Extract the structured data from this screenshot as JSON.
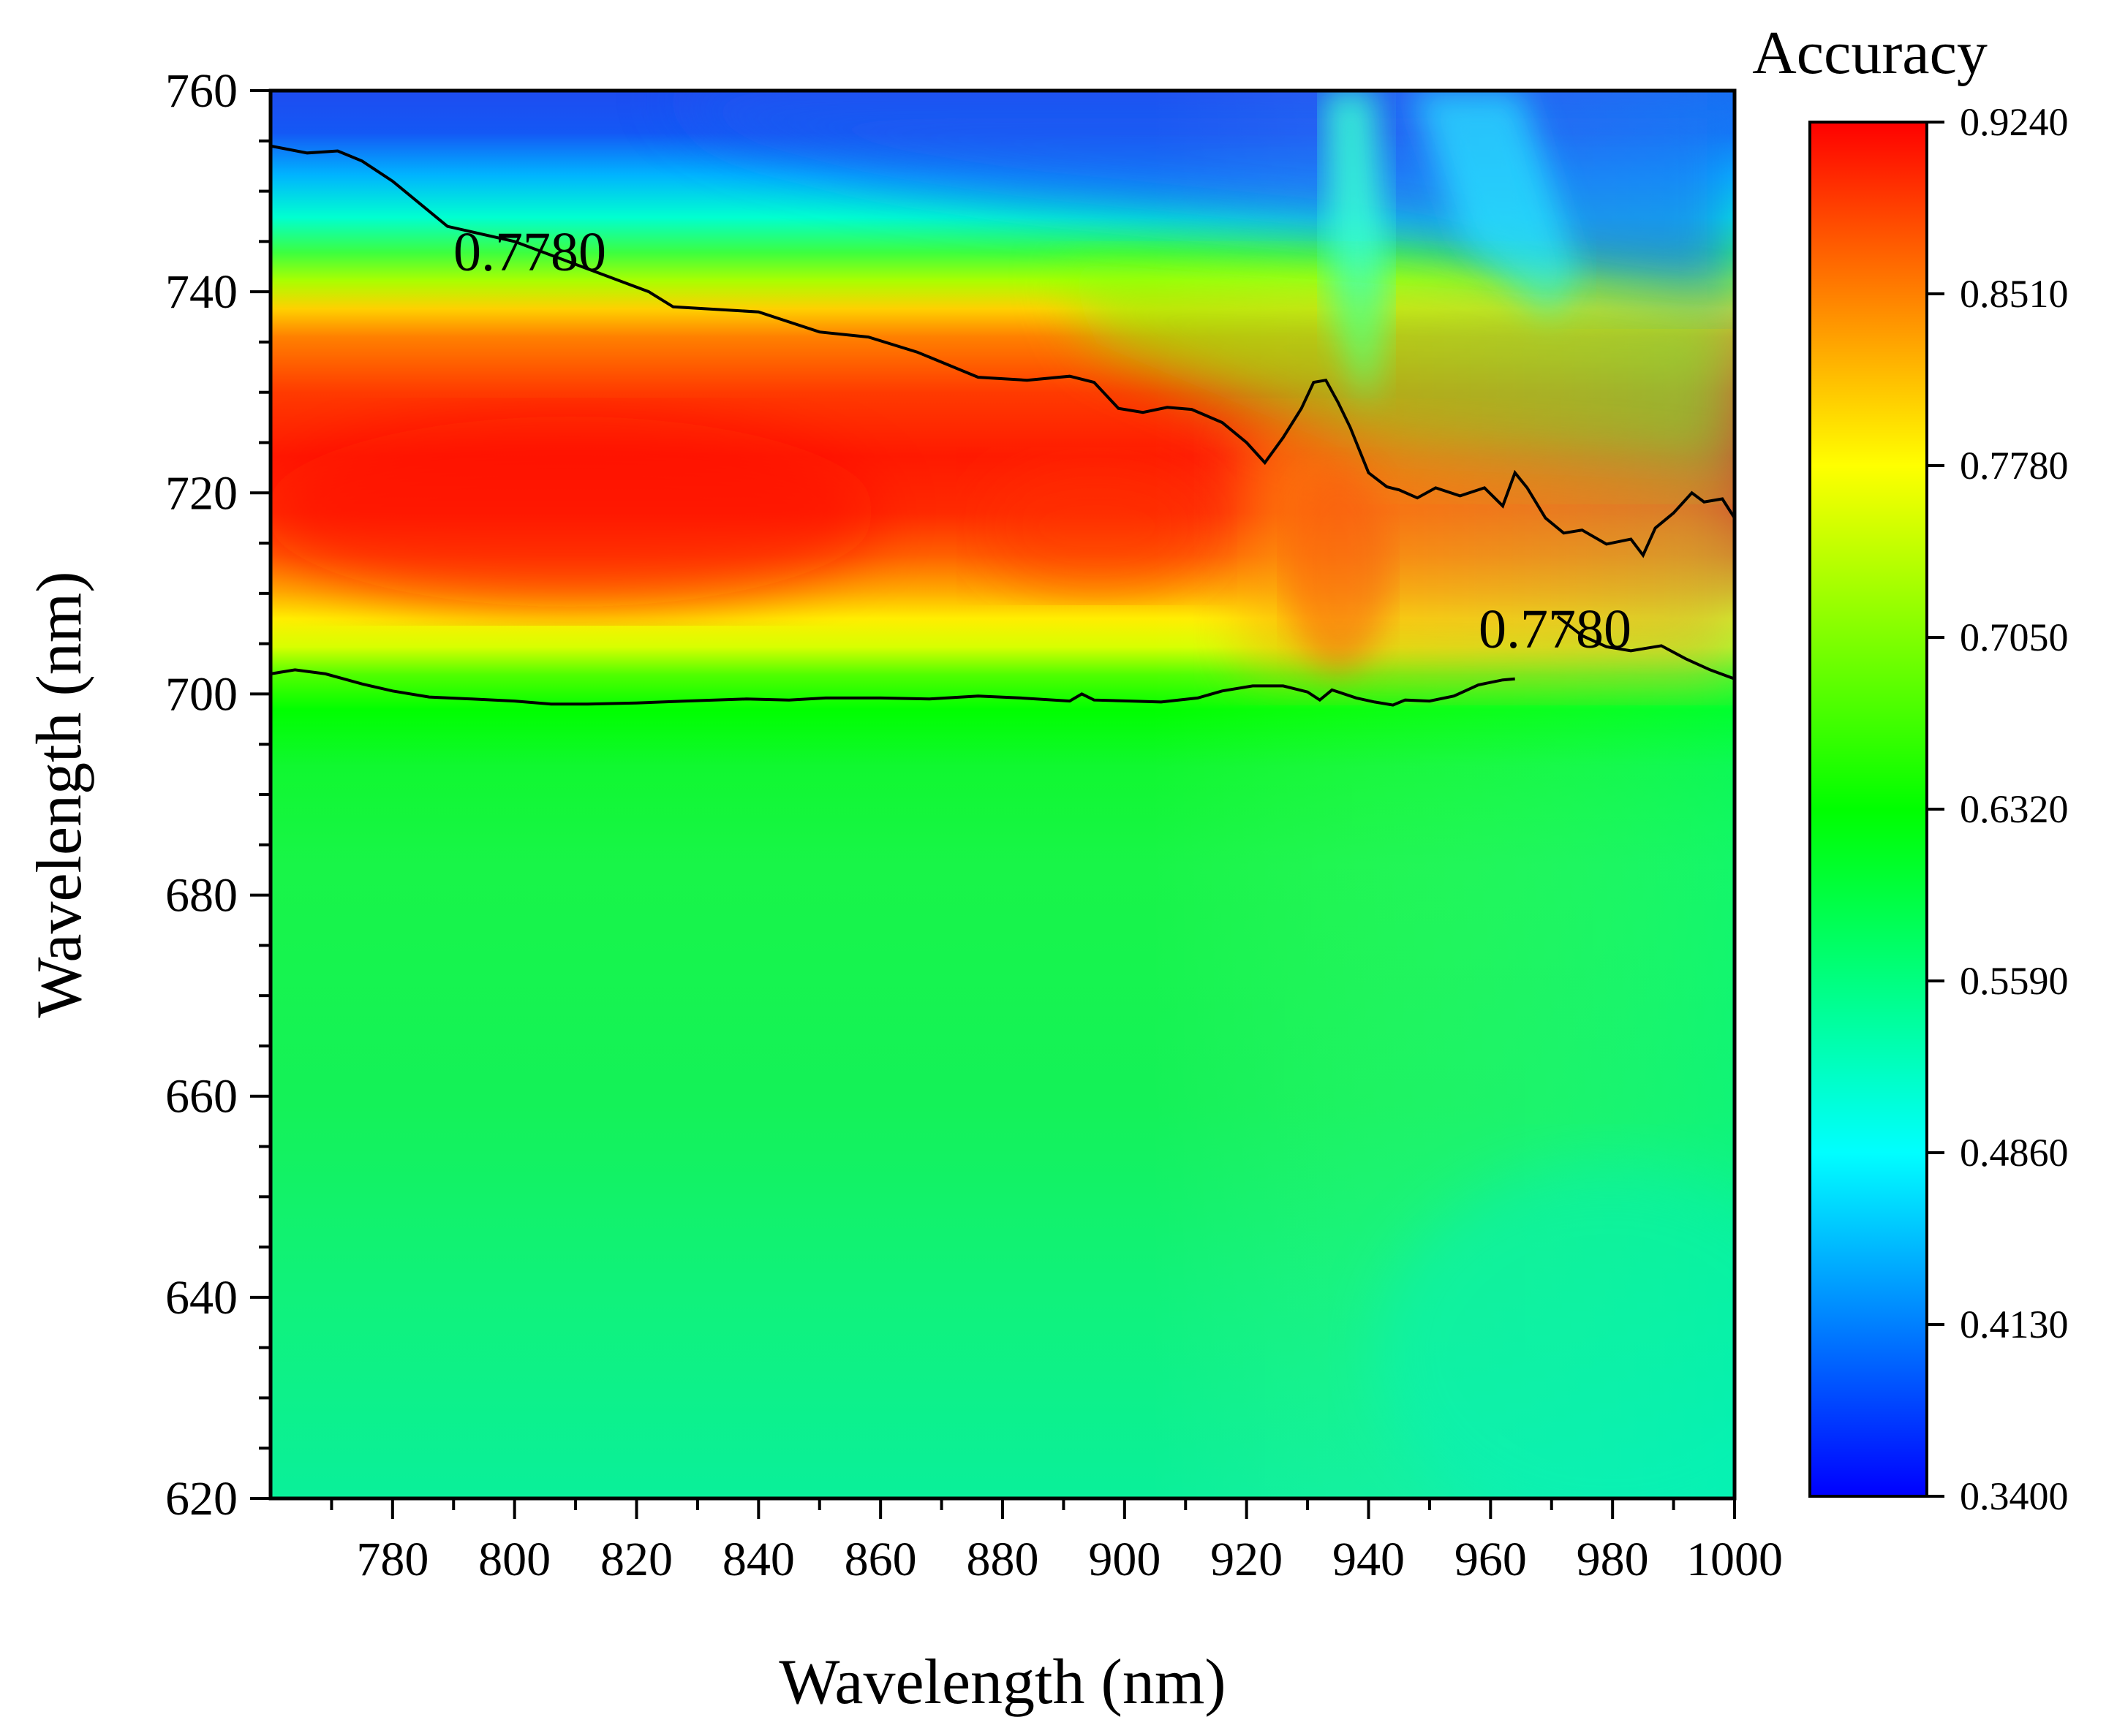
{
  "chart_data": {
    "type": "heatmap",
    "title": "",
    "xlabel": "Wavelength (nm)",
    "ylabel": "Wavelength (nm)",
    "xlim": [
      760,
      1000
    ],
    "ylim": [
      620,
      760
    ],
    "x_ticks": [
      780,
      800,
      820,
      840,
      860,
      880,
      900,
      920,
      940,
      960,
      980,
      1000
    ],
    "y_ticks": [
      620,
      640,
      660,
      680,
      700,
      720,
      740,
      760
    ],
    "colorbar": {
      "title": "Accuracy",
      "min": 0.34,
      "max": 0.924,
      "tick_values": [
        0.924,
        0.851,
        0.778,
        0.705,
        0.632,
        0.559,
        0.486,
        0.413,
        0.34
      ],
      "tick_labels": [
        "0.9240",
        "0.8510",
        "0.7780",
        "0.7050",
        "0.6320",
        "0.5590",
        "0.4860",
        "0.4130",
        "0.3400"
      ],
      "colors": [
        "#0000ff",
        "#0080ff",
        "#00ffff",
        "#00ff80",
        "#00ff00",
        "#80ff00",
        "#ffff00",
        "#ff8000",
        "#ff0000"
      ]
    },
    "contour": {
      "level": 0.778,
      "labels": [
        "0.7780",
        "0.7780"
      ],
      "upper_boundary": [
        [
          760,
          754.5
        ],
        [
          766,
          753.8
        ],
        [
          771,
          754
        ],
        [
          775,
          753
        ],
        [
          780,
          751
        ],
        [
          786,
          748
        ],
        [
          789,
          746.5
        ],
        [
          800,
          745
        ],
        [
          822,
          740
        ],
        [
          826,
          738.5
        ],
        [
          840,
          738
        ],
        [
          850,
          736
        ],
        [
          858,
          735.5
        ],
        [
          866,
          734
        ],
        [
          876,
          731.5
        ],
        [
          884,
          731.2
        ],
        [
          891,
          731.6
        ],
        [
          895,
          731
        ],
        [
          899,
          728.4
        ],
        [
          903,
          728
        ],
        [
          907,
          728.5
        ],
        [
          911,
          728.3
        ],
        [
          916,
          727
        ],
        [
          920,
          725
        ],
        [
          923,
          723
        ],
        [
          926,
          725.5
        ],
        [
          929,
          728.4
        ],
        [
          931,
          731
        ],
        [
          933,
          731.2
        ],
        [
          935,
          729
        ],
        [
          937,
          726.5
        ],
        [
          938,
          725
        ],
        [
          940,
          722
        ],
        [
          943,
          720.6
        ],
        [
          945,
          720.3
        ],
        [
          948,
          719.5
        ],
        [
          951,
          720.5
        ],
        [
          955,
          719.7
        ],
        [
          959,
          720.5
        ],
        [
          962,
          718.7
        ],
        [
          964,
          722
        ],
        [
          966,
          720.5
        ],
        [
          969,
          717.5
        ],
        [
          972,
          716
        ],
        [
          975,
          716.3
        ],
        [
          979,
          714.9
        ],
        [
          983,
          715.4
        ],
        [
          985,
          713.8
        ],
        [
          987,
          716.5
        ],
        [
          990,
          718
        ],
        [
          993,
          720
        ],
        [
          995,
          719.1
        ],
        [
          998,
          719.4
        ],
        [
          1000,
          717.5
        ]
      ],
      "lower_boundary": [
        [
          760,
          702
        ],
        [
          764,
          702.4
        ],
        [
          769,
          702
        ],
        [
          775,
          701
        ],
        [
          780,
          700.3
        ],
        [
          786,
          699.7
        ],
        [
          793,
          699.5
        ],
        [
          800,
          699.3
        ],
        [
          806,
          699
        ],
        [
          812,
          699
        ],
        [
          820,
          699.1
        ],
        [
          828,
          699.3
        ],
        [
          838,
          699.5
        ],
        [
          845,
          699.4
        ],
        [
          851,
          699.6
        ],
        [
          860,
          699.6
        ],
        [
          868,
          699.5
        ],
        [
          876,
          699.8
        ],
        [
          883,
          699.6
        ],
        [
          891,
          699.3
        ],
        [
          893,
          700
        ],
        [
          895,
          699.4
        ],
        [
          901,
          699.3
        ],
        [
          906,
          699.2
        ],
        [
          912,
          699.6
        ],
        [
          916,
          700.3
        ],
        [
          921,
          700.8
        ],
        [
          926,
          700.8
        ],
        [
          930,
          700.2
        ],
        [
          932,
          699.4
        ],
        [
          934,
          700.4
        ],
        [
          938,
          699.6
        ],
        [
          941,
          699.2
        ],
        [
          944,
          698.9
        ],
        [
          946,
          699.4
        ],
        [
          950,
          699.3
        ],
        [
          954,
          699.8
        ],
        [
          958,
          700.9
        ],
        [
          962,
          701.4
        ],
        [
          964,
          701.5
        ]
      ],
      "right_boundary": [
        [
          971,
          707.7
        ],
        [
          975,
          705.8
        ],
        [
          979,
          704.7
        ],
        [
          983,
          704.3
        ],
        [
          988,
          704.8
        ],
        [
          992,
          703.5
        ],
        [
          996,
          702.4
        ],
        [
          1000,
          701.5
        ]
      ]
    }
  }
}
